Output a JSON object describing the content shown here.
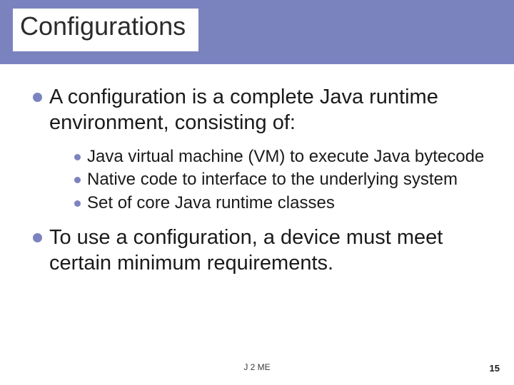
{
  "colors": {
    "band": "#7b83bf",
    "bullet": "#7b83bf",
    "text": "#1a1a1a",
    "background": "#ffffff"
  },
  "typography": {
    "title_fontsize": 36,
    "main_fontsize": 29,
    "sub_fontsize": 24,
    "footer_fontsize": 12,
    "pagenum_fontsize": 13,
    "font_family": "Arial"
  },
  "title": "Configurations",
  "main_points": [
    {
      "text": "A configuration is a complete Java runtime environment, consisting of:",
      "sub": [
        "Java virtual machine (VM) to execute Java bytecode",
        "Native code to interface to the underlying system",
        "Set of core Java runtime classes"
      ]
    },
    {
      "text": "To use a configuration, a device must meet certain minimum requirements.",
      "sub": []
    }
  ],
  "footer": "J 2 ME",
  "page_number": "15"
}
